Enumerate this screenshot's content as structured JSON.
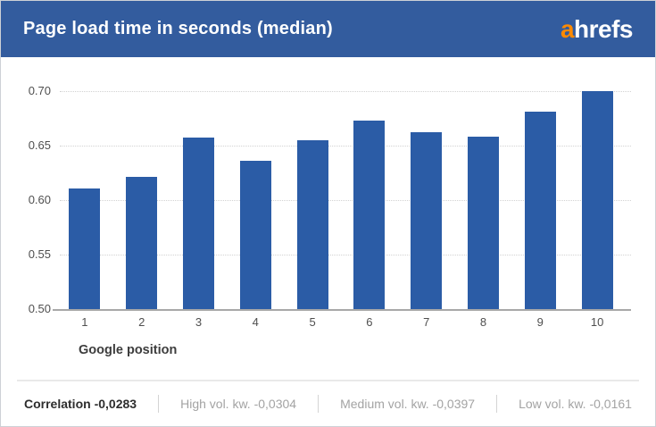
{
  "header": {
    "title": "Page load time in seconds (median)",
    "logo_prefix": "a",
    "logo_suffix": "hrefs"
  },
  "chart_data": {
    "type": "bar",
    "title": "Page load time in seconds (median)",
    "categories": [
      "1",
      "2",
      "3",
      "4",
      "5",
      "6",
      "7",
      "8",
      "9",
      "10"
    ],
    "values": [
      0.611,
      0.621,
      0.657,
      0.636,
      0.655,
      0.673,
      0.662,
      0.658,
      0.681,
      0.7
    ],
    "xlabel": "Google position",
    "ylabel": "",
    "ylim": [
      0.5,
      0.7
    ],
    "yticks": [
      0.5,
      0.55,
      0.6,
      0.65,
      0.7
    ],
    "grid": "horizontal-dotted",
    "legend": "none"
  },
  "footer": {
    "items": [
      {
        "label": "Correlation -0,0283",
        "emphasis": true
      },
      {
        "label": "High vol. kw. -0,0304",
        "emphasis": false
      },
      {
        "label": "Medium vol. kw. -0,0397",
        "emphasis": false
      },
      {
        "label": "Low vol. kw. -0,0161",
        "emphasis": false
      }
    ]
  },
  "colors": {
    "header_bg": "#335c9e",
    "logo_orange": "#ff8a00",
    "bar": "#2b5ca6",
    "muted_text": "#a3a3a3"
  }
}
